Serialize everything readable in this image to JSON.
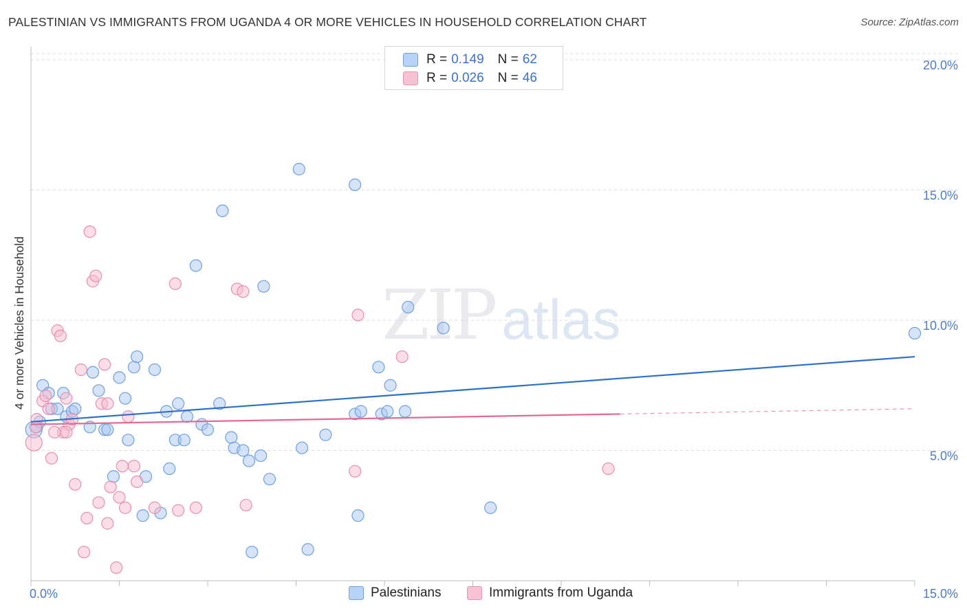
{
  "title": "PALESTINIAN VS IMMIGRANTS FROM UGANDA 4 OR MORE VEHICLES IN HOUSEHOLD CORRELATION CHART",
  "source": "Source: ZipAtlas.com",
  "watermark": {
    "zip": "ZIP",
    "atlas": "atlas"
  },
  "legend": {
    "rows": [
      {
        "r_label": "R =",
        "r_value": "0.149",
        "n_label": "N =",
        "n_value": "62",
        "color": "#b8d3f5"
      },
      {
        "r_label": "R =",
        "r_value": "0.026",
        "n_label": "N =",
        "n_value": "46",
        "color": "#f7c2d3"
      }
    ]
  },
  "bottom_legend": {
    "series1": "Palestinians",
    "series2": "Immigrants from Uganda"
  },
  "chart_data": {
    "type": "scatter",
    "title": "PALESTINIAN VS IMMIGRANTS FROM UGANDA 4 OR MORE VEHICLES IN HOUSEHOLD CORRELATION CHART",
    "xlabel": "",
    "ylabel": "4 or more Vehicles in Household",
    "xlim": [
      0,
      15
    ],
    "ylim": [
      0,
      20.5
    ],
    "x_tick_labels": [
      "0.0%",
      "15.0%"
    ],
    "y_ticks": [
      5,
      10,
      15,
      20
    ],
    "y_tick_labels": [
      "5.0%",
      "10.0%",
      "15.0%",
      "20.0%"
    ],
    "grid": true,
    "series": [
      {
        "name": "Palestinians",
        "color": "#a9c8f0",
        "edge": "#6f9fdc",
        "trend": {
          "x": [
            0,
            15
          ],
          "y": [
            6.1,
            8.6
          ],
          "color": "#2d6fcf"
        },
        "points": [
          [
            0.1,
            5.9
          ],
          [
            0.15,
            6.1
          ],
          [
            0.2,
            7.5
          ],
          [
            0.3,
            7.2
          ],
          [
            0.35,
            6.6
          ],
          [
            0.45,
            6.6
          ],
          [
            0.55,
            7.2
          ],
          [
            0.6,
            6.3
          ],
          [
            0.7,
            6.5
          ],
          [
            0.75,
            6.6
          ],
          [
            1.0,
            5.9
          ],
          [
            1.05,
            8.0
          ],
          [
            1.15,
            7.3
          ],
          [
            1.25,
            5.8
          ],
          [
            1.3,
            5.8
          ],
          [
            1.4,
            4.0
          ],
          [
            1.5,
            7.8
          ],
          [
            1.6,
            7.0
          ],
          [
            1.65,
            5.4
          ],
          [
            1.75,
            8.2
          ],
          [
            1.8,
            8.6
          ],
          [
            1.9,
            2.5
          ],
          [
            1.95,
            4.0
          ],
          [
            2.1,
            8.1
          ],
          [
            2.2,
            2.6
          ],
          [
            2.3,
            6.5
          ],
          [
            2.35,
            4.3
          ],
          [
            2.45,
            5.4
          ],
          [
            2.5,
            6.8
          ],
          [
            2.6,
            5.4
          ],
          [
            2.65,
            6.3
          ],
          [
            2.8,
            12.1
          ],
          [
            2.9,
            6.0
          ],
          [
            3.0,
            5.8
          ],
          [
            3.2,
            6.8
          ],
          [
            3.25,
            14.2
          ],
          [
            3.4,
            5.5
          ],
          [
            3.45,
            5.1
          ],
          [
            3.6,
            5.0
          ],
          [
            3.7,
            4.6
          ],
          [
            3.75,
            1.1
          ],
          [
            3.9,
            4.8
          ],
          [
            3.95,
            11.3
          ],
          [
            4.05,
            3.9
          ],
          [
            4.6,
            5.1
          ],
          [
            4.55,
            15.8
          ],
          [
            4.7,
            1.2
          ],
          [
            5.0,
            5.6
          ],
          [
            5.5,
            6.4
          ],
          [
            5.6,
            6.5
          ],
          [
            5.5,
            15.2
          ],
          [
            5.55,
            2.5
          ],
          [
            5.9,
            8.2
          ],
          [
            5.95,
            6.4
          ],
          [
            6.05,
            6.5
          ],
          [
            6.1,
            7.5
          ],
          [
            6.35,
            6.5
          ],
          [
            6.4,
            10.5
          ],
          [
            7.0,
            9.7
          ],
          [
            7.8,
            2.8
          ],
          [
            15.0,
            9.5
          ],
          [
            0.05,
            5.8
          ]
        ]
      },
      {
        "name": "Immigrants from Uganda",
        "color": "#f5bcd0",
        "edge": "#e68fb0",
        "trend": {
          "x": [
            0,
            10
          ],
          "y": [
            6.0,
            6.4
          ],
          "color": "#e46a95",
          "dashed_to": [
            15,
            6.6
          ]
        },
        "points": [
          [
            0.05,
            5.3
          ],
          [
            0.1,
            6.2
          ],
          [
            0.2,
            6.9
          ],
          [
            0.25,
            7.1
          ],
          [
            0.3,
            6.6
          ],
          [
            0.35,
            4.7
          ],
          [
            0.45,
            9.6
          ],
          [
            0.5,
            9.4
          ],
          [
            0.55,
            5.7
          ],
          [
            0.6,
            7.0
          ],
          [
            0.65,
            6.0
          ],
          [
            0.7,
            6.2
          ],
          [
            0.75,
            3.7
          ],
          [
            0.85,
            8.1
          ],
          [
            0.9,
            1.1
          ],
          [
            0.95,
            2.4
          ],
          [
            1.0,
            13.4
          ],
          [
            1.05,
            11.5
          ],
          [
            1.1,
            11.7
          ],
          [
            1.15,
            3.0
          ],
          [
            1.2,
            6.8
          ],
          [
            1.25,
            8.3
          ],
          [
            1.3,
            2.2
          ],
          [
            1.35,
            3.6
          ],
          [
            1.45,
            0.5
          ],
          [
            1.5,
            3.2
          ],
          [
            1.55,
            4.4
          ],
          [
            1.6,
            2.8
          ],
          [
            1.65,
            6.3
          ],
          [
            1.75,
            4.4
          ],
          [
            1.8,
            3.8
          ],
          [
            2.1,
            2.8
          ],
          [
            2.45,
            11.4
          ],
          [
            2.5,
            2.7
          ],
          [
            2.8,
            2.8
          ],
          [
            3.5,
            11.2
          ],
          [
            3.6,
            11.1
          ],
          [
            3.65,
            2.9
          ],
          [
            5.5,
            4.2
          ],
          [
            5.55,
            10.2
          ],
          [
            6.3,
            8.6
          ],
          [
            9.8,
            4.3
          ],
          [
            0.4,
            5.7
          ],
          [
            0.08,
            5.9
          ],
          [
            1.3,
            6.8
          ],
          [
            0.6,
            5.7
          ]
        ]
      }
    ]
  }
}
